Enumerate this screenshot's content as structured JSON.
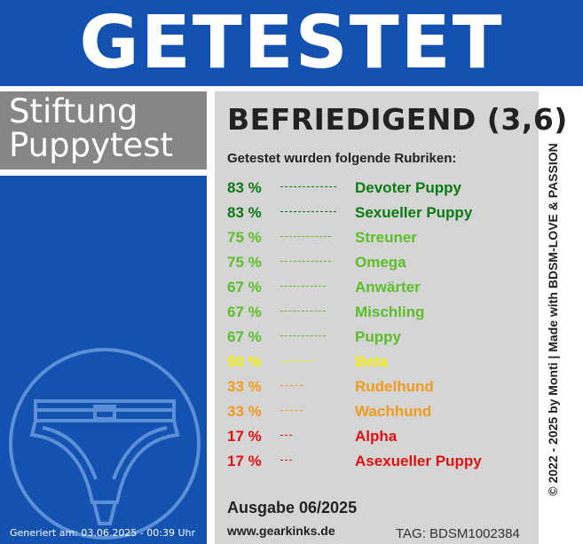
{
  "header": {
    "title": "GETESTET"
  },
  "brand": {
    "line1": "Stiftung",
    "line2": "Puppytest"
  },
  "result": {
    "rating": "BEFRIEDIGEND (3,6)",
    "subtitle": "Getestet wurden folgende Rubriken:",
    "rows": [
      {
        "pct": "83 %",
        "name": "Devoter Puppy",
        "color": "#0a7a12"
      },
      {
        "pct": "83 %",
        "name": "Sexueller Puppy",
        "color": "#0a7a12"
      },
      {
        "pct": "75 %",
        "name": "Streuner",
        "color": "#5cbf2a"
      },
      {
        "pct": "75 %",
        "name": "Omega",
        "color": "#5cbf2a"
      },
      {
        "pct": "67 %",
        "name": "Anwärter",
        "color": "#5cbf2a"
      },
      {
        "pct": "67 %",
        "name": "Mischling",
        "color": "#5cbf2a"
      },
      {
        "pct": "67 %",
        "name": "Puppy",
        "color": "#5cbf2a"
      },
      {
        "pct": "50 %",
        "name": "Beta",
        "color": "#f2f20a"
      },
      {
        "pct": "33 %",
        "name": "Rudelhund",
        "color": "#f29a1a"
      },
      {
        "pct": "33 %",
        "name": "Wachhund",
        "color": "#f29a1a"
      },
      {
        "pct": "17 %",
        "name": "Alpha",
        "color": "#e01010"
      },
      {
        "pct": "17 %",
        "name": "Asexueller Puppy",
        "color": "#e01010"
      }
    ],
    "edition": "Ausgabe 06/2025",
    "website": "www.gearkinks.de",
    "tag": "TAG: BDSM1002384"
  },
  "footer": {
    "generated": "Generiert am: 03.06.2025 - 00:39 Uhr"
  },
  "side_credit": "© 2022 - 2025 by Monti | Made with BDSM-LOVE & PASSION",
  "icons": {
    "logo": "briefs-icon"
  }
}
